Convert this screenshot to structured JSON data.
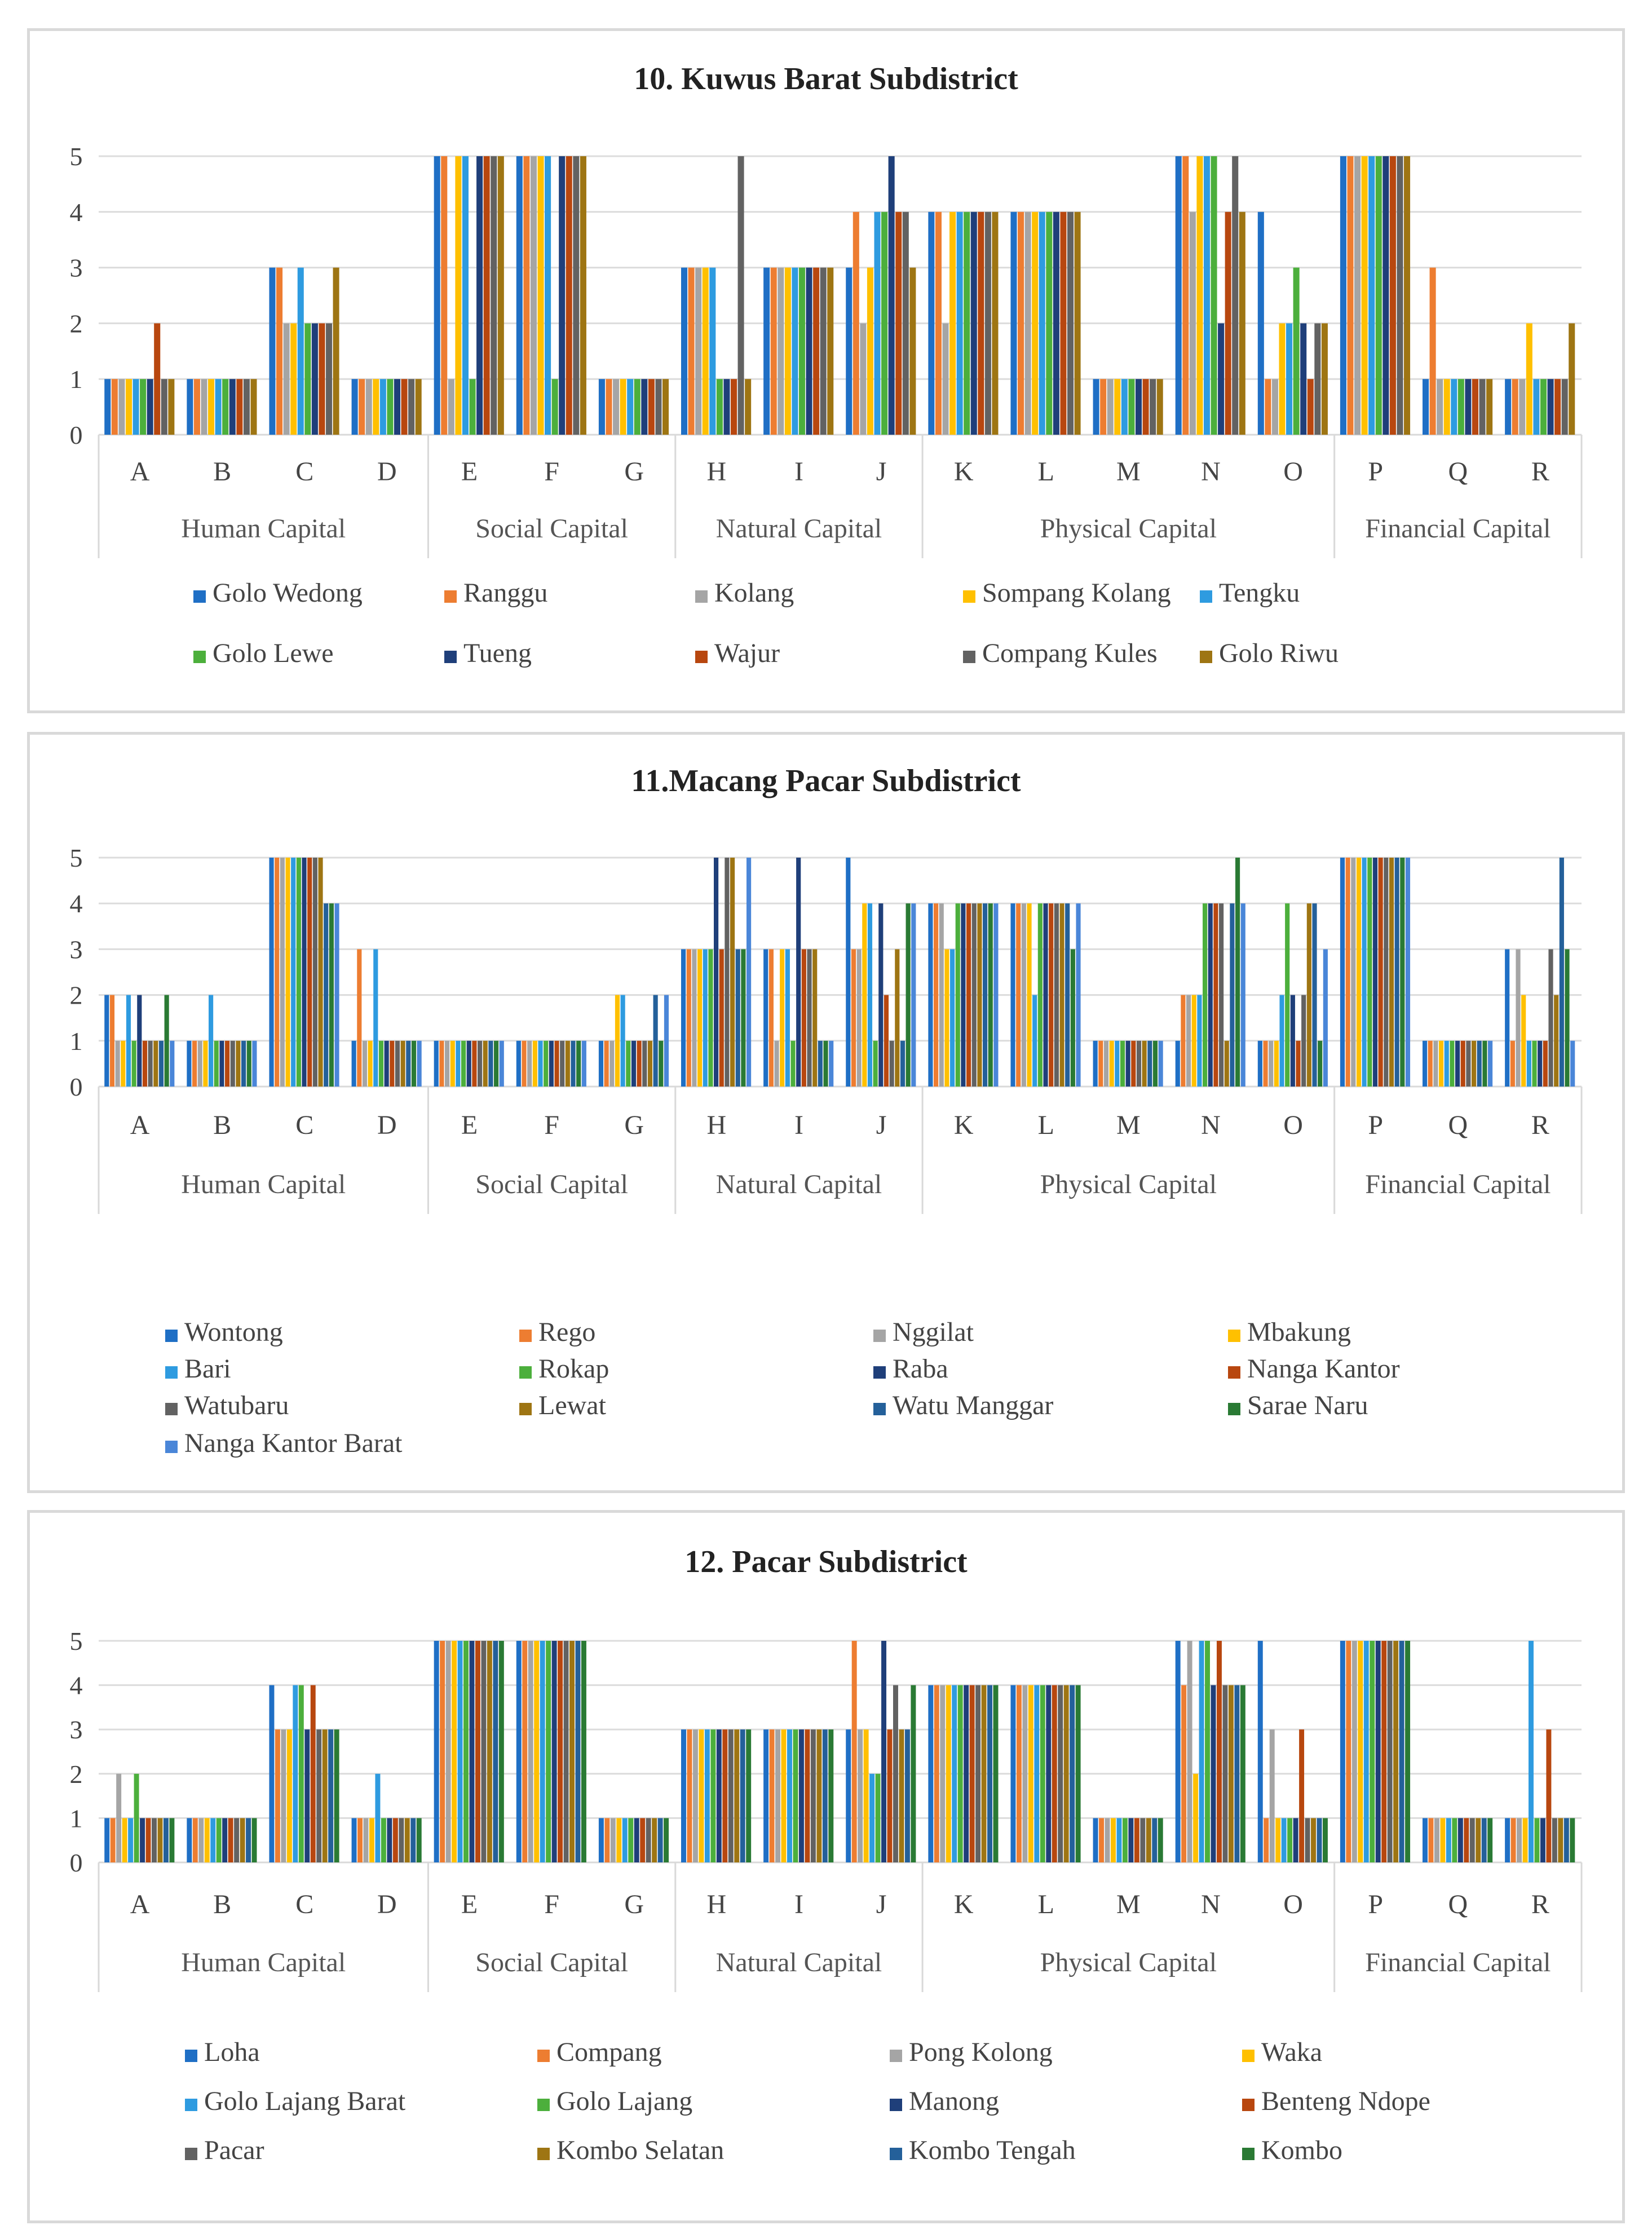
{
  "palette": [
    "#1F6FC5",
    "#ED7D31",
    "#A5A5A5",
    "#FFC000",
    "#2E9BE0",
    "#4CAF3C",
    "#1F3F7A",
    "#B8470F",
    "#626262",
    "#9E7513",
    "#24609A",
    "#2A7A34",
    "#4A86D8"
  ],
  "chart_data": [
    {
      "type": "bar",
      "title": "10. Kuwus Barat Subdistrict",
      "ylim": [
        0,
        5
      ],
      "yticks": [
        0,
        1,
        2,
        3,
        4,
        5
      ],
      "categories": [
        "A",
        "B",
        "C",
        "D",
        "E",
        "F",
        "G",
        "H",
        "I",
        "J",
        "K",
        "L",
        "M",
        "N",
        "O",
        "P",
        "Q",
        "R"
      ],
      "groups": [
        {
          "label": "Human Capital",
          "count": 4
        },
        {
          "label": "Social Capital",
          "count": 3
        },
        {
          "label": "Natural Capital",
          "count": 3
        },
        {
          "label": "Physical Capital",
          "count": 5
        },
        {
          "label": "Financial Capital",
          "count": 3
        }
      ],
      "legend_cols": 5,
      "series": [
        {
          "name": "Golo Wedong",
          "values": [
            1,
            1,
            3,
            1,
            5,
            5,
            1,
            3,
            3,
            3,
            4,
            4,
            1,
            5,
            4,
            5,
            1,
            1
          ]
        },
        {
          "name": "Ranggu",
          "values": [
            1,
            1,
            3,
            1,
            5,
            5,
            1,
            3,
            3,
            4,
            4,
            4,
            1,
            5,
            1,
            5,
            3,
            1
          ]
        },
        {
          "name": "Kolang",
          "values": [
            1,
            1,
            2,
            1,
            1,
            5,
            1,
            3,
            3,
            2,
            2,
            4,
            1,
            4,
            1,
            5,
            1,
            1
          ]
        },
        {
          "name": "Sompang Kolang",
          "values": [
            1,
            1,
            2,
            1,
            5,
            5,
            1,
            3,
            3,
            3,
            4,
            4,
            1,
            5,
            2,
            5,
            1,
            2
          ]
        },
        {
          "name": "Tengku",
          "values": [
            1,
            1,
            3,
            1,
            5,
            5,
            1,
            3,
            3,
            4,
            4,
            4,
            1,
            5,
            2,
            5,
            1,
            1
          ]
        },
        {
          "name": "Golo Lewe",
          "values": [
            1,
            1,
            2,
            1,
            1,
            1,
            1,
            1,
            3,
            4,
            4,
            4,
            1,
            5,
            3,
            5,
            1,
            1
          ]
        },
        {
          "name": "Tueng",
          "values": [
            1,
            1,
            2,
            1,
            5,
            5,
            1,
            1,
            3,
            5,
            4,
            4,
            1,
            2,
            2,
            5,
            1,
            1
          ]
        },
        {
          "name": "Wajur",
          "values": [
            2,
            1,
            2,
            1,
            5,
            5,
            1,
            1,
            3,
            4,
            4,
            4,
            1,
            4,
            1,
            5,
            1,
            1
          ]
        },
        {
          "name": "Compang Kules",
          "values": [
            1,
            1,
            2,
            1,
            5,
            5,
            1,
            5,
            3,
            4,
            4,
            4,
            1,
            5,
            2,
            5,
            1,
            1
          ]
        },
        {
          "name": "Golo Riwu",
          "values": [
            1,
            1,
            3,
            1,
            5,
            5,
            1,
            1,
            3,
            3,
            4,
            4,
            1,
            4,
            2,
            5,
            1,
            2
          ]
        }
      ]
    },
    {
      "type": "bar",
      "title": "11.Macang Pacar Subdistrict",
      "ylim": [
        0,
        5
      ],
      "yticks": [
        0,
        1,
        2,
        3,
        4,
        5
      ],
      "categories": [
        "A",
        "B",
        "C",
        "D",
        "E",
        "F",
        "G",
        "H",
        "I",
        "J",
        "K",
        "L",
        "M",
        "N",
        "O",
        "P",
        "Q",
        "R"
      ],
      "groups": [
        {
          "label": "Human Capital",
          "count": 4
        },
        {
          "label": "Social Capital",
          "count": 3
        },
        {
          "label": "Natural Capital",
          "count": 3
        },
        {
          "label": "Physical Capital",
          "count": 5
        },
        {
          "label": "Financial Capital",
          "count": 3
        }
      ],
      "legend_cols": 4,
      "series": [
        {
          "name": "Wontong",
          "values": [
            2,
            1,
            5,
            1,
            1,
            1,
            1,
            3,
            3,
            5,
            4,
            4,
            1,
            1,
            1,
            5,
            1,
            3
          ]
        },
        {
          "name": "Rego",
          "values": [
            2,
            1,
            5,
            3,
            1,
            1,
            1,
            3,
            3,
            3,
            4,
            4,
            1,
            2,
            1,
            5,
            1,
            1
          ]
        },
        {
          "name": "Nggilat",
          "values": [
            1,
            1,
            5,
            1,
            1,
            1,
            1,
            3,
            1,
            3,
            4,
            4,
            1,
            2,
            1,
            5,
            1,
            3
          ]
        },
        {
          "name": "Mbakung",
          "values": [
            1,
            1,
            5,
            1,
            1,
            1,
            2,
            3,
            3,
            4,
            3,
            4,
            1,
            2,
            1,
            5,
            1,
            2
          ]
        },
        {
          "name": "Bari",
          "values": [
            2,
            2,
            5,
            3,
            1,
            1,
            2,
            3,
            3,
            4,
            3,
            2,
            1,
            2,
            2,
            5,
            1,
            1
          ]
        },
        {
          "name": "Rokap",
          "values": [
            1,
            1,
            5,
            1,
            1,
            1,
            1,
            3,
            1,
            1,
            4,
            4,
            1,
            4,
            4,
            5,
            1,
            1
          ]
        },
        {
          "name": "Raba",
          "values": [
            2,
            1,
            5,
            1,
            1,
            1,
            1,
            5,
            5,
            4,
            4,
            4,
            1,
            4,
            2,
            5,
            1,
            1
          ]
        },
        {
          "name": "Nanga Kantor",
          "values": [
            1,
            1,
            5,
            1,
            1,
            1,
            1,
            3,
            3,
            2,
            4,
            4,
            1,
            4,
            1,
            5,
            1,
            1
          ]
        },
        {
          "name": "Watubaru",
          "values": [
            1,
            1,
            5,
            1,
            1,
            1,
            1,
            5,
            3,
            1,
            4,
            4,
            1,
            4,
            2,
            5,
            1,
            3
          ]
        },
        {
          "name": "Lewat",
          "values": [
            1,
            1,
            5,
            1,
            1,
            1,
            1,
            5,
            3,
            3,
            4,
            4,
            1,
            1,
            4,
            5,
            1,
            2
          ]
        },
        {
          "name": "Watu Manggar",
          "values": [
            1,
            1,
            4,
            1,
            1,
            1,
            2,
            3,
            1,
            1,
            4,
            4,
            1,
            4,
            4,
            5,
            1,
            5
          ]
        },
        {
          "name": "Sarae Naru",
          "values": [
            2,
            1,
            4,
            1,
            1,
            1,
            1,
            3,
            1,
            4,
            4,
            3,
            1,
            5,
            1,
            5,
            1,
            3
          ]
        },
        {
          "name": "Nanga Kantor Barat",
          "values": [
            1,
            1,
            4,
            1,
            1,
            1,
            2,
            5,
            1,
            4,
            4,
            4,
            1,
            4,
            3,
            5,
            1,
            1
          ]
        }
      ]
    },
    {
      "type": "bar",
      "title": "12. Pacar Subdistrict",
      "ylim": [
        0,
        5
      ],
      "yticks": [
        0,
        1,
        2,
        3,
        4,
        5
      ],
      "categories": [
        "A",
        "B",
        "C",
        "D",
        "E",
        "F",
        "G",
        "H",
        "I",
        "J",
        "K",
        "L",
        "M",
        "N",
        "O",
        "P",
        "Q",
        "R"
      ],
      "groups": [
        {
          "label": "Human Capital",
          "count": 4
        },
        {
          "label": "Social Capital",
          "count": 3
        },
        {
          "label": "Natural Capital",
          "count": 3
        },
        {
          "label": "Physical Capital",
          "count": 5
        },
        {
          "label": "Financial Capital",
          "count": 3
        }
      ],
      "legend_cols": 4,
      "series": [
        {
          "name": "Loha",
          "values": [
            1,
            1,
            4,
            1,
            5,
            5,
            1,
            3,
            3,
            3,
            4,
            4,
            1,
            5,
            5,
            5,
            1,
            1
          ]
        },
        {
          "name": "Compang",
          "values": [
            1,
            1,
            3,
            1,
            5,
            5,
            1,
            3,
            3,
            5,
            4,
            4,
            1,
            4,
            1,
            5,
            1,
            1
          ]
        },
        {
          "name": "Pong Kolong",
          "values": [
            2,
            1,
            3,
            1,
            5,
            5,
            1,
            3,
            3,
            3,
            4,
            4,
            1,
            5,
            3,
            5,
            1,
            1
          ]
        },
        {
          "name": "Waka",
          "values": [
            1,
            1,
            3,
            1,
            5,
            5,
            1,
            3,
            3,
            3,
            4,
            4,
            1,
            2,
            1,
            5,
            1,
            1
          ]
        },
        {
          "name": "Golo Lajang Barat",
          "values": [
            1,
            1,
            4,
            2,
            5,
            5,
            1,
            3,
            3,
            2,
            4,
            4,
            1,
            5,
            1,
            5,
            1,
            5
          ]
        },
        {
          "name": "Golo Lajang",
          "values": [
            2,
            1,
            4,
            1,
            5,
            5,
            1,
            3,
            3,
            2,
            4,
            4,
            1,
            5,
            1,
            5,
            1,
            1
          ]
        },
        {
          "name": "Manong",
          "values": [
            1,
            1,
            3,
            1,
            5,
            5,
            1,
            3,
            3,
            5,
            4,
            4,
            1,
            4,
            1,
            5,
            1,
            1
          ]
        },
        {
          "name": "Benteng Ndope",
          "values": [
            1,
            1,
            4,
            1,
            5,
            5,
            1,
            3,
            3,
            3,
            4,
            4,
            1,
            5,
            3,
            5,
            1,
            3
          ]
        },
        {
          "name": "Pacar",
          "values": [
            1,
            1,
            3,
            1,
            5,
            5,
            1,
            3,
            3,
            4,
            4,
            4,
            1,
            4,
            1,
            5,
            1,
            1
          ]
        },
        {
          "name": "Kombo Selatan",
          "values": [
            1,
            1,
            3,
            1,
            5,
            5,
            1,
            3,
            3,
            3,
            4,
            4,
            1,
            4,
            1,
            5,
            1,
            1
          ]
        },
        {
          "name": "Kombo Tengah",
          "values": [
            1,
            1,
            3,
            1,
            5,
            5,
            1,
            3,
            3,
            3,
            4,
            4,
            1,
            4,
            1,
            5,
            1,
            1
          ]
        },
        {
          "name": "Kombo",
          "values": [
            1,
            1,
            3,
            1,
            5,
            5,
            1,
            3,
            3,
            4,
            4,
            4,
            1,
            4,
            1,
            5,
            1,
            1
          ]
        }
      ]
    }
  ]
}
